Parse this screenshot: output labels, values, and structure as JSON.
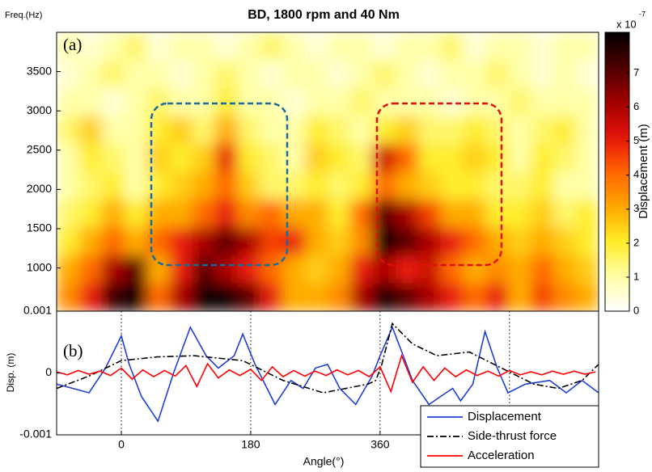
{
  "chart_data": [
    {
      "type": "heatmap",
      "title": "BD, 1800 rpm and 40 Nm",
      "ylabel": "Freq.(Hz)",
      "annotation": "(a)",
      "xlim": [
        -90,
        664
      ],
      "ylim": [
        450,
        4000
      ],
      "yticks": [
        1000,
        1500,
        2000,
        2500,
        3000,
        3500
      ],
      "values": [
        [
          1,
          0.5,
          1,
          1.5,
          0.5,
          1,
          1,
          0.5,
          1,
          1.5,
          1,
          0.5,
          1,
          1,
          0.5,
          1,
          1,
          1.5,
          0.5,
          1,
          1,
          0.5,
          1,
          1
        ],
        [
          0.5,
          1,
          1.5,
          1,
          1,
          0.5,
          1,
          1.5,
          1,
          0.5,
          1,
          1,
          0.5,
          1,
          1.5,
          1,
          0.5,
          1,
          1,
          1.5,
          1,
          0.5,
          1,
          0.5
        ],
        [
          1,
          1,
          0.5,
          1,
          1.5,
          1,
          1,
          2,
          1,
          1,
          0.5,
          1,
          1,
          1.5,
          1,
          1,
          1,
          0.5,
          1,
          1,
          1.5,
          1,
          1,
          1
        ],
        [
          1.5,
          2.5,
          1,
          1,
          2,
          2.5,
          1.5,
          3,
          1.5,
          1,
          1,
          2,
          1.5,
          1,
          2,
          2.5,
          1.5,
          1.5,
          2,
          1.5,
          1,
          1.5,
          2,
          1
        ],
        [
          1,
          2,
          1.5,
          1,
          2.5,
          2,
          2.5,
          5,
          2,
          1.5,
          1,
          2.5,
          2,
          1.5,
          5.5,
          4,
          2,
          2,
          2.5,
          2,
          1,
          2,
          1.5,
          1
        ],
        [
          1,
          1.5,
          2,
          1,
          2,
          2.5,
          3,
          4,
          2.5,
          1.5,
          1.5,
          2,
          1.5,
          2,
          4,
          3,
          2.5,
          2,
          2,
          1.5,
          1.5,
          2,
          1,
          1
        ],
        [
          1.5,
          2,
          3,
          2,
          3,
          3,
          4,
          5,
          3.5,
          4,
          3,
          3,
          2,
          4,
          7,
          6,
          4.5,
          3,
          3,
          2,
          2,
          2.5,
          1.5,
          2
        ],
        [
          2,
          3,
          4,
          3,
          4,
          5,
          6,
          7,
          6,
          4.5,
          5,
          3,
          2.5,
          3.5,
          8,
          7,
          6,
          5,
          4,
          3,
          2.5,
          3,
          2.5,
          2
        ],
        [
          3,
          4,
          6,
          7,
          3,
          5,
          7,
          6,
          5,
          4,
          3,
          2.5,
          3,
          5,
          6,
          5,
          5.5,
          4,
          3,
          3.5,
          3,
          4,
          3,
          2.5
        ],
        [
          3.5,
          5,
          7.5,
          8,
          4,
          6,
          8,
          8,
          7,
          5,
          3,
          3,
          3.5,
          6,
          8,
          7,
          6,
          5,
          4,
          5,
          3,
          4.5,
          3.5,
          3
        ]
      ],
      "clim": [
        0,
        8.2
      ],
      "cticks": [
        0,
        1,
        2,
        3,
        4,
        5,
        6,
        7
      ],
      "colorbar_label": "Displacement (m)",
      "colorbar_multiplier": "x 10",
      "colorbar_exponent": "-7"
    },
    {
      "type": "line",
      "annotation": "(b)",
      "xlabel": "Angle(°)",
      "ylabel": "Disp. (m)",
      "xlim": [
        -90,
        664
      ],
      "ylim": [
        -0.001,
        0.001
      ],
      "xticks": [
        0,
        180,
        360
      ],
      "yticks": [
        -0.001,
        0,
        0.001
      ],
      "vlines": [
        0,
        180,
        360,
        540
      ],
      "legend": "lower right",
      "series": [
        {
          "name": "Displacement",
          "color": "#1f3fd6",
          "linestyle": "solid",
          "x": [
            -90,
            -67,
            -45,
            -22,
            0,
            11,
            28,
            51,
            73,
            96,
            118,
            135,
            157,
            169,
            186,
            214,
            236,
            253,
            270,
            287,
            304,
            326,
            349,
            360,
            377,
            388,
            405,
            428,
            444,
            461,
            472,
            489,
            506,
            523,
            538,
            562,
            596,
            619,
            641,
            664
          ],
          "values": [
            -0.00018,
            -0.00025,
            -0.00032,
            8e-05,
            0.0006,
            0.00014,
            -0.00038,
            -0.00078,
            1e-05,
            0.00074,
            0.00028,
            8e-05,
            0.00028,
            0.00063,
            0.00014,
            -0.00051,
            -0.00012,
            -0.00025,
            8e-05,
            0.00014,
            -0.00025,
            -0.00051,
            -5e-05,
            0.00028,
            0.00074,
            0.00041,
            -0.00012,
            -0.00051,
            -0.00038,
            -0.00025,
            -0.00045,
            -0.00018,
            0.00067,
            8e-05,
            -0.00032,
            -0.00018,
            -0.00012,
            -0.00032,
            -0.00012,
            -0.00032
          ]
        },
        {
          "name": "Side-thrust force",
          "color": "#000000",
          "linestyle": "dashdot",
          "x": [
            -90,
            -45,
            0,
            50,
            101,
            169,
            225,
            281,
            343,
            354,
            362,
            377,
            405,
            439,
            484,
            529,
            574,
            608,
            641,
            664
          ],
          "values": [
            -0.00025,
            -5e-05,
            0.0002,
            0.00026,
            0.00028,
            0.0002,
            -0.00012,
            -0.00032,
            -0.00018,
            -0.00012,
            0.00012,
            0.0008,
            0.00047,
            0.00028,
            0.00034,
            8e-05,
            -0.00018,
            -0.00025,
            -0.00012,
            0.00014
          ]
        },
        {
          "name": "Acceleration",
          "color": "#ff0000",
          "linestyle": "solid",
          "x": [
            -90,
            -75,
            -60,
            -45,
            -30,
            -15,
            0,
            15,
            30,
            45,
            60,
            75,
            90,
            105,
            120,
            135,
            150,
            165,
            180,
            195,
            210,
            225,
            240,
            255,
            270,
            285,
            300,
            315,
            330,
            345,
            360,
            375,
            390,
            405,
            420,
            435,
            450,
            465,
            480,
            495,
            510,
            525,
            540,
            555,
            570,
            585,
            600,
            615,
            630,
            645,
            660
          ],
          "values": [
            2e-05,
            -3e-05,
            4e-05,
            -2e-05,
            3e-05,
            -4e-05,
            8e-05,
            -0.0001,
            5e-05,
            -6e-05,
            4e-05,
            -5e-05,
            0.00012,
            -0.00022,
            0.00015,
            -8e-05,
            5e-05,
            -4e-05,
            6e-05,
            -0.00012,
            0.0001,
            -6e-05,
            4e-05,
            -5e-05,
            3e-05,
            -4e-05,
            5e-05,
            -3e-05,
            4e-05,
            -6e-05,
            0.0001,
            -0.0003,
            0.00028,
            -0.00015,
            0.0001,
            -0.00012,
            8e-05,
            -6e-05,
            5e-05,
            -4e-05,
            3e-05,
            -5e-05,
            4e-05,
            -3e-05,
            2e-05,
            -3e-05,
            3e-05,
            -2e-05,
            3e-05,
            -2e-05,
            2e-05
          ]
        }
      ]
    }
  ]
}
